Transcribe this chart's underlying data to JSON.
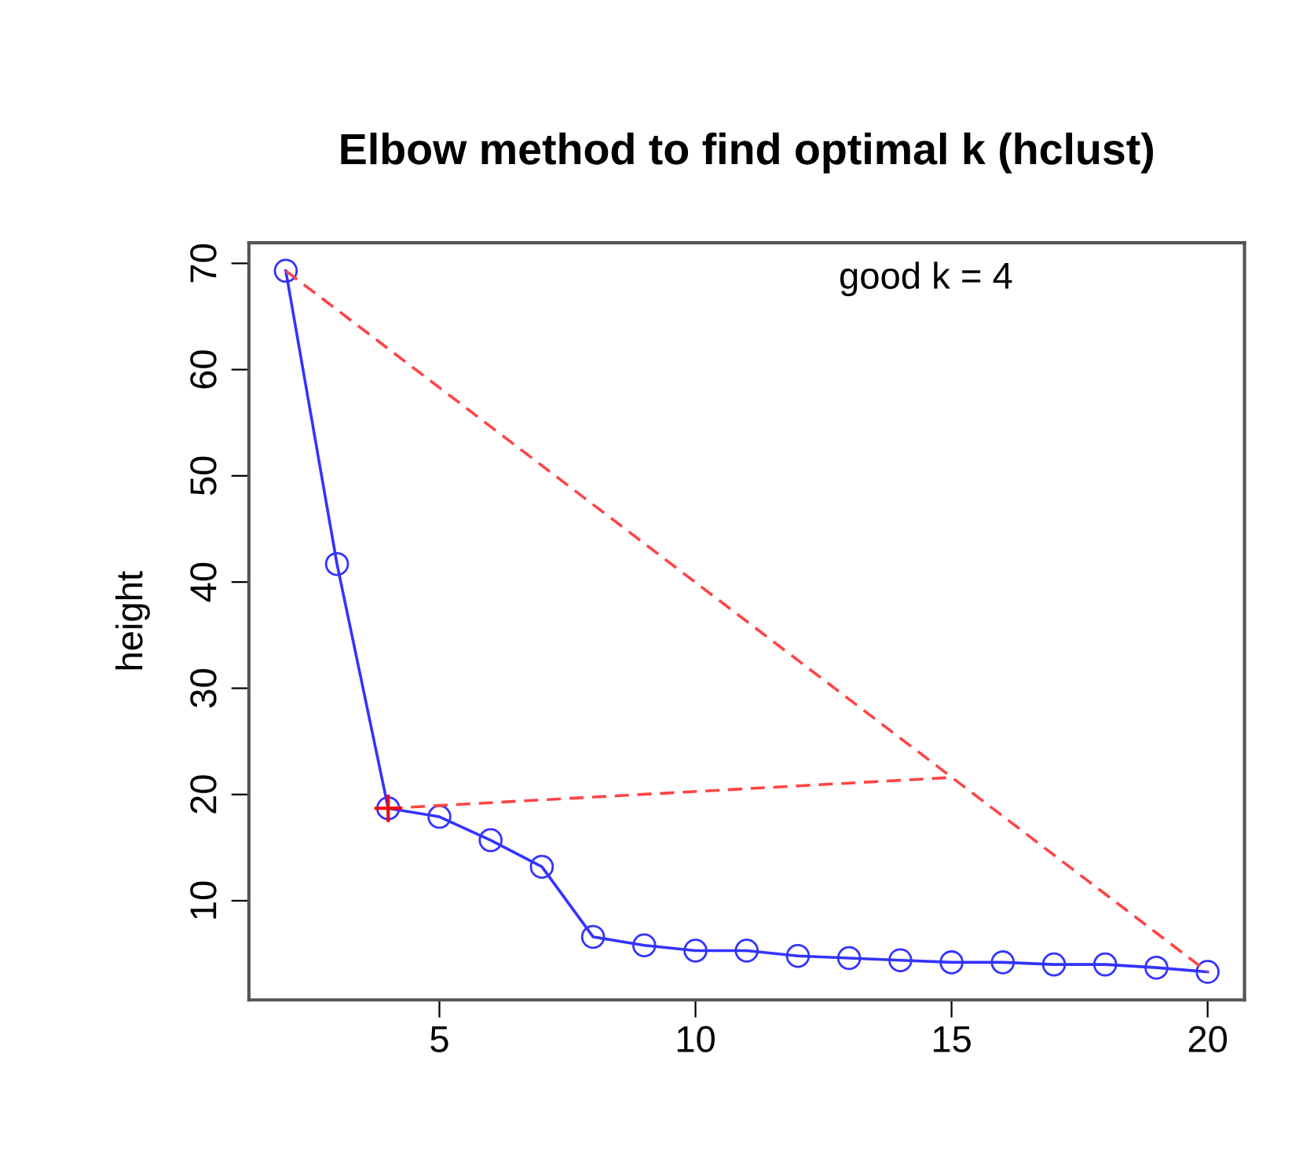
{
  "chart_data": {
    "type": "line",
    "title": "Elbow method to find optimal k (hclust)",
    "ylabel": "height",
    "x": [
      2,
      3,
      4,
      5,
      6,
      7,
      8,
      9,
      10,
      11,
      12,
      13,
      14,
      15,
      16,
      17,
      18,
      19,
      20
    ],
    "series": [
      {
        "color": "#3333ff",
        "marker": "circle",
        "line_style": "solid",
        "values": [
          69.3,
          41.7,
          18.7,
          17.9,
          15.7,
          13.2,
          6.6,
          5.8,
          5.3,
          5.3,
          4.8,
          4.6,
          4.4,
          4.2,
          4.2,
          4.0,
          4.0,
          3.7,
          3.3
        ]
      },
      {
        "type": "line",
        "color": "#ff4444",
        "marker": "none",
        "line_style": "dashed",
        "x": [
          2,
          20
        ],
        "values": [
          69.3,
          3.3
        ]
      },
      {
        "type": "line",
        "color": "#ff4444",
        "marker": "none",
        "line_style": "dashed",
        "x": [
          4,
          15
        ],
        "values": [
          18.7,
          21.6
        ]
      },
      {
        "type": "scatter",
        "color": "#ff0000",
        "marker": "cross",
        "x": [
          4
        ],
        "values": [
          18.7
        ]
      }
    ],
    "annotations": [
      "good k = 4"
    ],
    "xlim": [
      1.28,
      20.72
    ],
    "ylim": [
      0.66,
      71.94
    ],
    "xticks": [
      5,
      10,
      15,
      20
    ],
    "yticks": [
      10,
      20,
      30,
      40,
      50,
      60,
      70
    ],
    "grid": false,
    "legend": false
  }
}
